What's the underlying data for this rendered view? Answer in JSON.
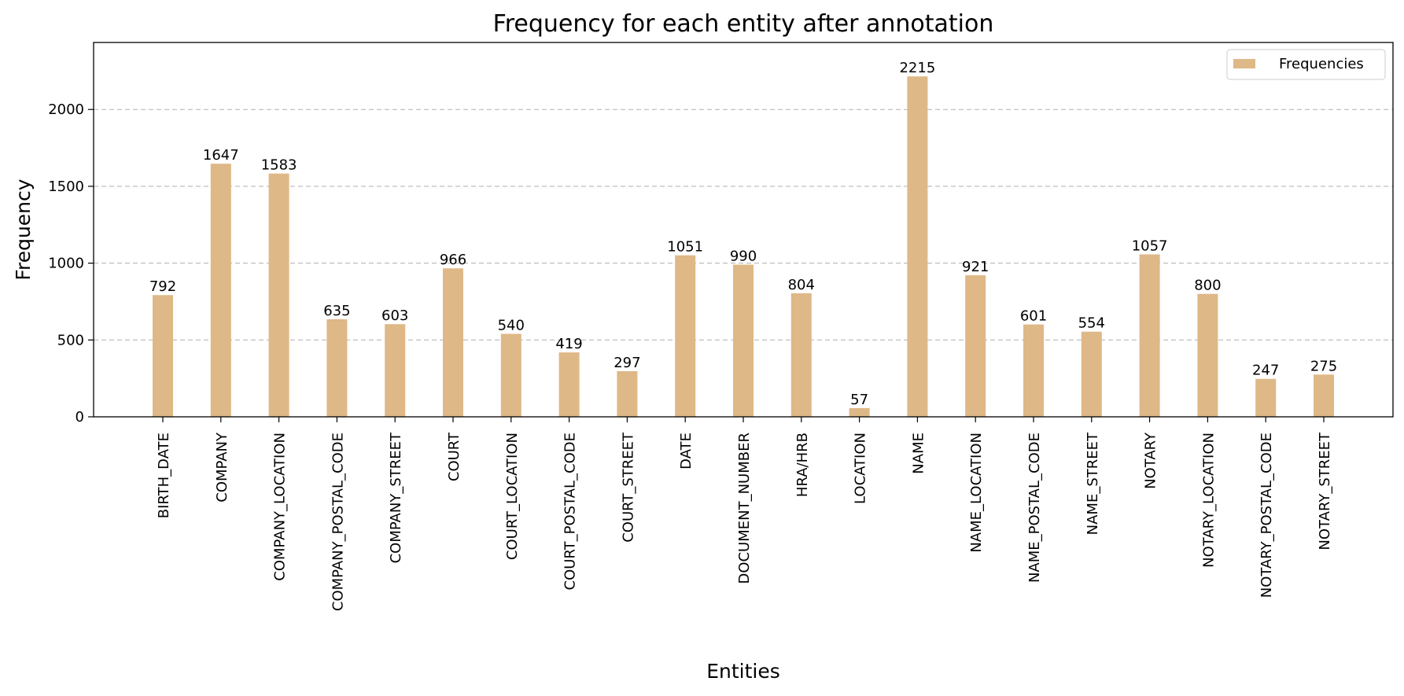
{
  "chart_data": {
    "type": "bar",
    "title": "Frequency for each entity after annotation",
    "xlabel": "Entities",
    "ylabel": "Frequency",
    "categories": [
      "BIRTH_DATE",
      "COMPANY",
      "COMPANY_LOCATION",
      "COMPANY_POSTAL_CODE",
      "COMPANY_STREET",
      "COURT",
      "COURT_LOCATION",
      "COURT_POSTAL_CODE",
      "COURT_STREET",
      "DATE",
      "DOCUMENT_NUMBER",
      "HRA/HRB",
      "LOCATION",
      "NAME",
      "NAME_LOCATION",
      "NAME_POSTAL_CODE",
      "NAME_STREET",
      "NOTARY",
      "NOTARY_LOCATION",
      "NOTARY_POSTAL_CODE",
      "NOTARY_STREET"
    ],
    "series": [
      {
        "name": "Frequencies",
        "color": "#deb887",
        "values": [
          792,
          1647,
          1583,
          635,
          603,
          966,
          540,
          419,
          297,
          1051,
          990,
          804,
          57,
          2215,
          921,
          601,
          554,
          1057,
          800,
          247,
          275
        ]
      }
    ],
    "ylim": [
      0,
      2436
    ],
    "yticks": [
      0,
      500,
      1000,
      1500,
      2000
    ],
    "grid": "y-dashed",
    "legend_position": "top-right"
  }
}
